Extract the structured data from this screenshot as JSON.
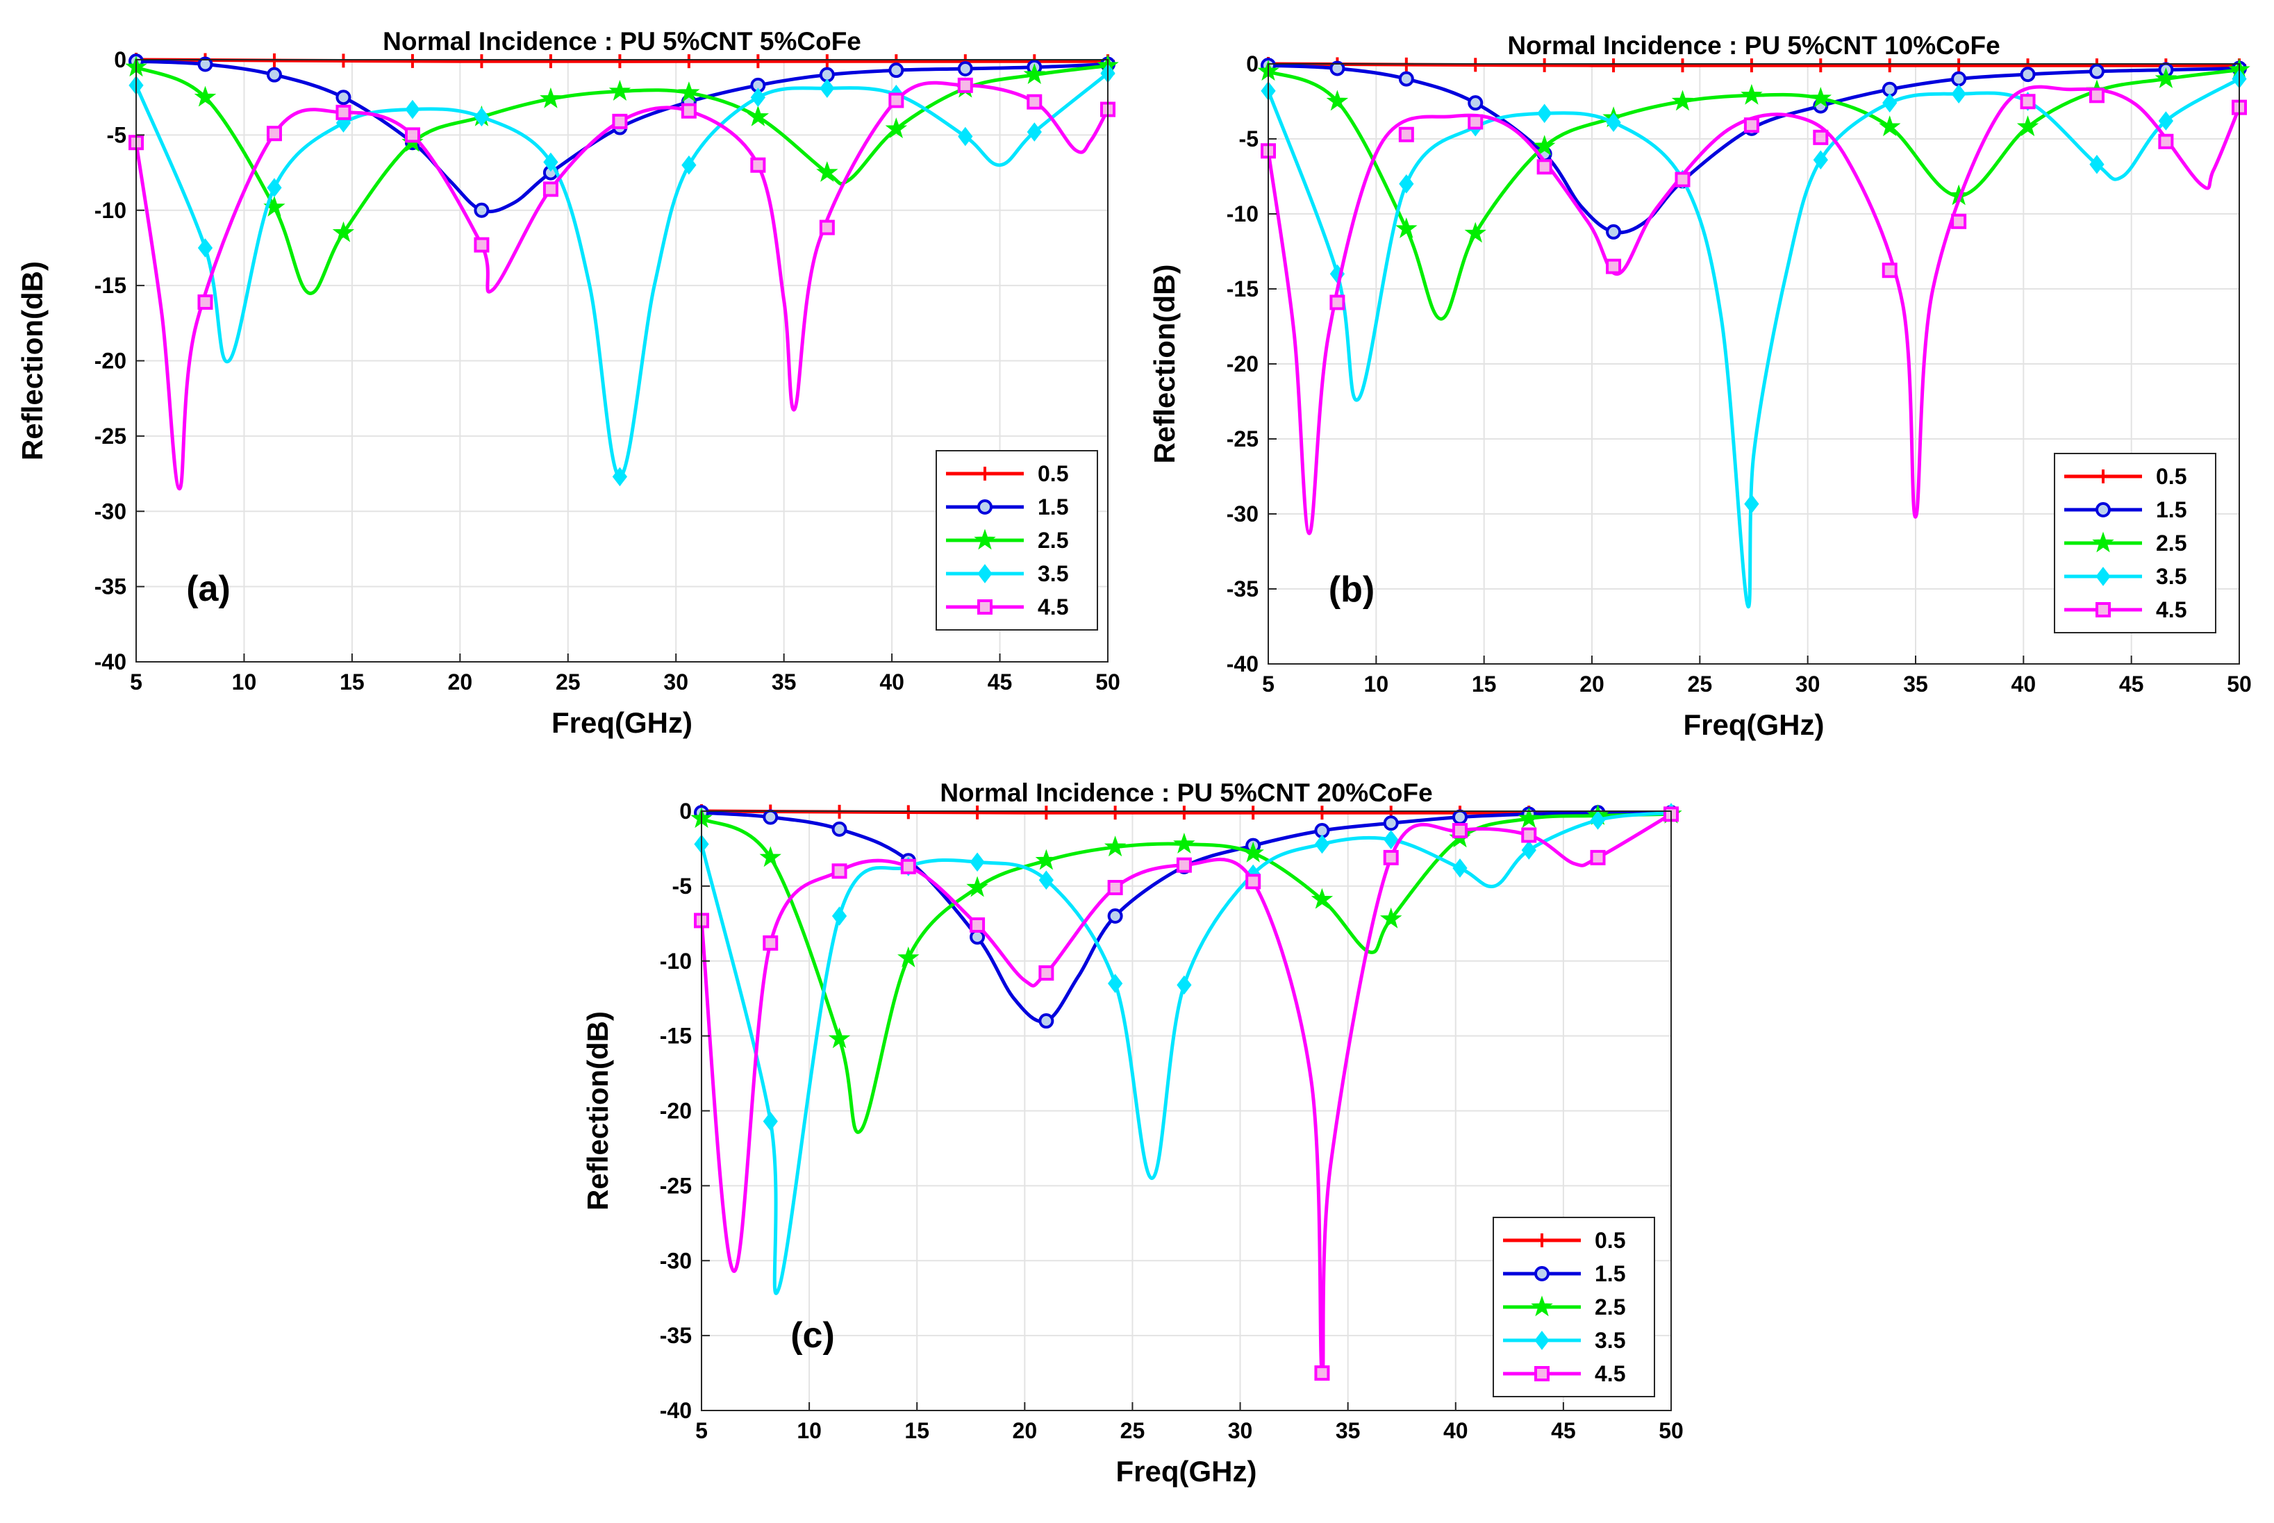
{
  "chart_data": [
    {
      "type": "line",
      "title": "Normal Incidence : PU 5%CNT 5%CoFe",
      "panel_label": "(a)",
      "xlabel": "Freq(GHz)",
      "ylabel": "Reflection(dB)",
      "xlim": [
        5,
        50
      ],
      "ylim": [
        -40,
        0
      ],
      "xticks": [
        "5",
        "10",
        "15",
        "20",
        "25",
        "30",
        "35",
        "40",
        "45",
        "50"
      ],
      "yticks": [
        "0",
        "-5",
        "-10",
        "-15",
        "-20",
        "-25",
        "-30",
        "-35",
        "-40"
      ],
      "grid": true,
      "legend_position": "lower-right",
      "series": [
        {
          "name": "0.5",
          "color": "#ff0000",
          "marker": "plus",
          "points": [
            [
              5,
              0
            ],
            [
              20,
              -0.1
            ],
            [
              35,
              -0.1
            ],
            [
              50,
              -0.1
            ]
          ]
        },
        {
          "name": "1.5",
          "color": "#0000dd",
          "marker": "circle",
          "points": [
            [
              5,
              -0.1
            ],
            [
              8.2,
              -0.3
            ],
            [
              11.4,
              -1
            ],
            [
              14.6,
              -2.5
            ],
            [
              17.8,
              -5.5
            ],
            [
              19.5,
              -8
            ],
            [
              21,
              -10
            ],
            [
              22.5,
              -9.5
            ],
            [
              24.2,
              -7.5
            ],
            [
              27.4,
              -4.5
            ],
            [
              30.6,
              -2.8
            ],
            [
              33.8,
              -1.7
            ],
            [
              37,
              -1
            ],
            [
              40.2,
              -0.7
            ],
            [
              43.4,
              -0.6
            ],
            [
              46.6,
              -0.5
            ],
            [
              50,
              -0.3
            ]
          ]
        },
        {
          "name": "2.5",
          "color": "#00ee00",
          "marker": "star",
          "points": [
            [
              5,
              -0.5
            ],
            [
              8.2,
              -2.5
            ],
            [
              11.4,
              -9.8
            ],
            [
              13,
              -15.5
            ],
            [
              14.6,
              -11.5
            ],
            [
              17.8,
              -5.5
            ],
            [
              21,
              -3.8
            ],
            [
              24.2,
              -2.6
            ],
            [
              27.4,
              -2.1
            ],
            [
              30.6,
              -2.2
            ],
            [
              33.8,
              -3.8
            ],
            [
              37,
              -7.5
            ],
            [
              38,
              -8
            ],
            [
              40.2,
              -4.6
            ],
            [
              43.4,
              -1.9
            ],
            [
              46.6,
              -1
            ],
            [
              50,
              -0.4
            ]
          ]
        },
        {
          "name": "3.5",
          "color": "#00e5ff",
          "marker": "diamond",
          "points": [
            [
              5,
              -1.7
            ],
            [
              8.2,
              -12.5
            ],
            [
              9.3,
              -20
            ],
            [
              11.4,
              -8.5
            ],
            [
              14.6,
              -4.2
            ],
            [
              17.8,
              -3.3
            ],
            [
              21,
              -3.8
            ],
            [
              24.2,
              -6.8
            ],
            [
              26,
              -15
            ],
            [
              27.4,
              -27.7
            ],
            [
              29,
              -15
            ],
            [
              30.6,
              -7
            ],
            [
              33.8,
              -2.5
            ],
            [
              37,
              -1.9
            ],
            [
              40.2,
              -2.3
            ],
            [
              43.4,
              -5.1
            ],
            [
              45,
              -7
            ],
            [
              46.6,
              -4.8
            ],
            [
              50,
              -0.9
            ]
          ]
        },
        {
          "name": "4.5",
          "color": "#ff00ff",
          "marker": "square",
          "points": [
            [
              5,
              -5.5
            ],
            [
              6.2,
              -17
            ],
            [
              7,
              -28.5
            ],
            [
              7.8,
              -17.5
            ],
            [
              11.4,
              -4.9
            ],
            [
              14.6,
              -3.5
            ],
            [
              17.8,
              -5
            ],
            [
              21,
              -12.3
            ],
            [
              21.5,
              -15.3
            ],
            [
              24.2,
              -8.6
            ],
            [
              27.4,
              -4.1
            ],
            [
              30.6,
              -3.4
            ],
            [
              33.8,
              -7
            ],
            [
              35,
              -16
            ],
            [
              35.5,
              -23.2
            ],
            [
              36.6,
              -12.2
            ],
            [
              40.2,
              -2.7
            ],
            [
              43.4,
              -1.7
            ],
            [
              46.6,
              -2.8
            ],
            [
              48.5,
              -6
            ],
            [
              49.2,
              -5.4
            ],
            [
              50,
              -3.3
            ]
          ]
        }
      ]
    },
    {
      "type": "line",
      "title": "Normal Incidence : PU 5%CNT 10%CoFe",
      "panel_label": "(b)",
      "xlabel": "Freq(GHz)",
      "ylabel": "Reflection(dB)",
      "xlim": [
        5,
        50
      ],
      "ylim": [
        -40,
        0
      ],
      "xticks": [
        "5",
        "10",
        "15",
        "20",
        "25",
        "30",
        "35",
        "40",
        "45",
        "50"
      ],
      "yticks": [
        "0",
        "-5",
        "-10",
        "-15",
        "-20",
        "-25",
        "-30",
        "-35",
        "-40"
      ],
      "grid": true,
      "legend_position": "lower-right",
      "series": [
        {
          "name": "0.5",
          "color": "#ff0000",
          "marker": "plus",
          "points": [
            [
              5,
              0
            ],
            [
              20,
              -0.1
            ],
            [
              35,
              -0.1
            ],
            [
              50,
              -0.1
            ]
          ]
        },
        {
          "name": "1.5",
          "color": "#0000dd",
          "marker": "circle",
          "points": [
            [
              5,
              -0.1
            ],
            [
              8.2,
              -0.3
            ],
            [
              11.4,
              -1
            ],
            [
              14.6,
              -2.6
            ],
            [
              17.8,
              -6
            ],
            [
              19.5,
              -9.5
            ],
            [
              21,
              -11.2
            ],
            [
              22.5,
              -10.5
            ],
            [
              24.2,
              -7.8
            ],
            [
              27.4,
              -4.3
            ],
            [
              30.6,
              -2.8
            ],
            [
              33.8,
              -1.7
            ],
            [
              37,
              -1
            ],
            [
              40.2,
              -0.7
            ],
            [
              43.4,
              -0.5
            ],
            [
              46.6,
              -0.4
            ],
            [
              50,
              -0.3
            ]
          ]
        },
        {
          "name": "2.5",
          "color": "#00ee00",
          "marker": "star",
          "points": [
            [
              5,
              -0.5
            ],
            [
              8.2,
              -2.5
            ],
            [
              11.4,
              -11
            ],
            [
              13,
              -17
            ],
            [
              14.6,
              -11.3
            ],
            [
              17.8,
              -5.5
            ],
            [
              21,
              -3.6
            ],
            [
              24.2,
              -2.5
            ],
            [
              27.4,
              -2.1
            ],
            [
              30.6,
              -2.3
            ],
            [
              33.8,
              -4.2
            ],
            [
              37,
              -8.8
            ],
            [
              40.2,
              -4.2
            ],
            [
              43.4,
              -1.8
            ],
            [
              46.6,
              -1
            ],
            [
              50,
              -0.4
            ]
          ]
        },
        {
          "name": "3.5",
          "color": "#00e5ff",
          "marker": "diamond",
          "points": [
            [
              5,
              -1.8
            ],
            [
              8.2,
              -14
            ],
            [
              9.2,
              -22.3
            ],
            [
              11.4,
              -8
            ],
            [
              14.6,
              -4.2
            ],
            [
              17.8,
              -3.3
            ],
            [
              21,
              -3.9
            ],
            [
              24.2,
              -7.7
            ],
            [
              26,
              -17
            ],
            [
              27.2,
              -36
            ],
            [
              27.5,
              -26
            ],
            [
              29,
              -14
            ],
            [
              30.6,
              -6.4
            ],
            [
              33.8,
              -2.6
            ],
            [
              37,
              -2
            ],
            [
              40.2,
              -2.5
            ],
            [
              43.4,
              -6.7
            ],
            [
              44.6,
              -7.5
            ],
            [
              46.6,
              -3.8
            ],
            [
              50,
              -1
            ]
          ]
        },
        {
          "name": "4.5",
          "color": "#ff00ff",
          "marker": "square",
          "points": [
            [
              5,
              -5.8
            ],
            [
              6.2,
              -18
            ],
            [
              6.9,
              -31.3
            ],
            [
              7.8,
              -18
            ],
            [
              10.2,
              -5.4
            ],
            [
              13.5,
              -3.5
            ],
            [
              16.5,
              -4.5
            ],
            [
              19.8,
              -10.5
            ],
            [
              21.2,
              -14
            ],
            [
              23,
              -9.6
            ],
            [
              26.3,
              -4.4
            ],
            [
              29.4,
              -3.5
            ],
            [
              31.8,
              -6.3
            ],
            [
              34.4,
              -16
            ],
            [
              35,
              -30.2
            ],
            [
              35.8,
              -15
            ],
            [
              39,
              -3
            ],
            [
              42.2,
              -1.7
            ],
            [
              45.2,
              -2.7
            ],
            [
              48.2,
              -8
            ],
            [
              48.8,
              -7.1
            ],
            [
              50,
              -2.9
            ]
          ]
        }
      ]
    },
    {
      "type": "line",
      "title": "Normal Incidence : PU 5%CNT 20%CoFe",
      "panel_label": "(c)",
      "xlabel": "Freq(GHz)",
      "ylabel": "Reflection(dB)",
      "xlim": [
        5,
        50
      ],
      "ylim": [
        -40,
        0
      ],
      "xticks": [
        "5",
        "10",
        "15",
        "20",
        "25",
        "30",
        "35",
        "40",
        "45",
        "50"
      ],
      "yticks": [
        "0",
        "-5",
        "-10",
        "-15",
        "-20",
        "-25",
        "-30",
        "-35",
        "-40"
      ],
      "grid": true,
      "legend_position": "lower-right",
      "series": [
        {
          "name": "0.5",
          "color": "#ff0000",
          "marker": "plus",
          "points": [
            [
              5,
              0
            ],
            [
              20,
              -0.1
            ],
            [
              35,
              -0.1
            ],
            [
              50,
              -0.1
            ]
          ]
        },
        {
          "name": "1.5",
          "color": "#0000dd",
          "marker": "circle",
          "points": [
            [
              5,
              -0.1
            ],
            [
              8.2,
              -0.4
            ],
            [
              11.4,
              -1.2
            ],
            [
              14.6,
              -3.3
            ],
            [
              17.8,
              -8.4
            ],
            [
              19.5,
              -12.5
            ],
            [
              21,
              -14
            ],
            [
              22.5,
              -11
            ],
            [
              24.2,
              -7
            ],
            [
              27.4,
              -3.7
            ],
            [
              30.6,
              -2.3
            ],
            [
              33.8,
              -1.3
            ],
            [
              37,
              -0.8
            ],
            [
              40.2,
              -0.4
            ],
            [
              43.4,
              -0.2
            ],
            [
              46.6,
              -0.1
            ],
            [
              50,
              -0.1
            ]
          ]
        },
        {
          "name": "2.5",
          "color": "#00ee00",
          "marker": "star",
          "points": [
            [
              5,
              -0.5
            ],
            [
              8.2,
              -3.1
            ],
            [
              11.4,
              -15.2
            ],
            [
              12.4,
              -21.3
            ],
            [
              14.6,
              -9.8
            ],
            [
              17.8,
              -5.1
            ],
            [
              21,
              -3.3
            ],
            [
              24.2,
              -2.4
            ],
            [
              27.4,
              -2.2
            ],
            [
              30.6,
              -2.8
            ],
            [
              33.8,
              -5.9
            ],
            [
              36,
              -9.4
            ],
            [
              37,
              -7.2
            ],
            [
              40.2,
              -1.8
            ],
            [
              43.4,
              -0.5
            ],
            [
              46.6,
              -0.3
            ],
            [
              50,
              -0.2
            ]
          ]
        },
        {
          "name": "3.5",
          "color": "#00e5ff",
          "marker": "diamond",
          "points": [
            [
              5,
              -2.2
            ],
            [
              8.2,
              -20.7
            ],
            [
              8.6,
              -31.8
            ],
            [
              11.4,
              -7
            ],
            [
              14.6,
              -3.7
            ],
            [
              17.8,
              -3.4
            ],
            [
              21,
              -4.6
            ],
            [
              24.2,
              -11.5
            ],
            [
              25.9,
              -24.5
            ],
            [
              27.4,
              -11.6
            ],
            [
              30.6,
              -4.2
            ],
            [
              33.8,
              -2.2
            ],
            [
              37,
              -1.9
            ],
            [
              40.2,
              -3.8
            ],
            [
              41.8,
              -5
            ],
            [
              43.4,
              -2.6
            ],
            [
              46.6,
              -0.6
            ],
            [
              50,
              -0.1
            ]
          ]
        },
        {
          "name": "4.5",
          "color": "#ff00ff",
          "marker": "square",
          "points": [
            [
              5,
              -7.3
            ],
            [
              6.5,
              -30.7
            ],
            [
              8.2,
              -8.8
            ],
            [
              11.4,
              -4
            ],
            [
              14.6,
              -3.7
            ],
            [
              17.8,
              -7.6
            ],
            [
              20,
              -11.3
            ],
            [
              21,
              -10.8
            ],
            [
              24.2,
              -5.1
            ],
            [
              27.4,
              -3.6
            ],
            [
              30.6,
              -4.7
            ],
            [
              33.3,
              -18
            ],
            [
              33.8,
              -37.5
            ],
            [
              34.2,
              -23.6
            ],
            [
              37,
              -3.1
            ],
            [
              40.2,
              -1.3
            ],
            [
              43.4,
              -1.6
            ],
            [
              45.5,
              -3.5
            ],
            [
              46.6,
              -3.1
            ],
            [
              50,
              -0.2
            ]
          ]
        }
      ]
    }
  ]
}
